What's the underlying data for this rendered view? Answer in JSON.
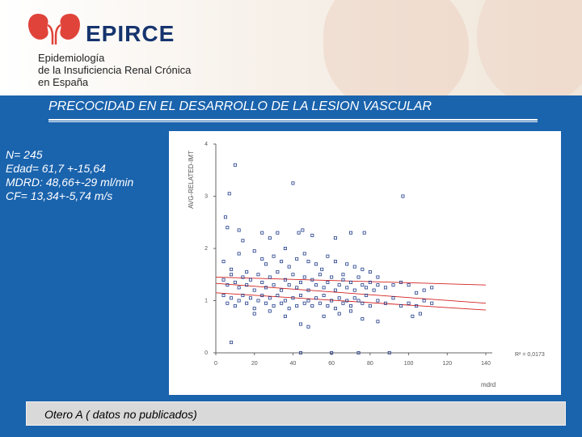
{
  "header": {
    "brand": "EPIRCE",
    "org_lines": [
      "Epidemiología",
      "de la Insuficiencia Renal Crónica",
      "en España"
    ]
  },
  "title": "PRECOCIDAD EN EL DESARROLLO DE LA LESION VASCULAR",
  "stats": [
    "N= 245",
    "Edad= 61,7 +-15,64",
    "MDRD: 48,66+-29 ml/min",
    "CF= 13,34+-5,74 m/s"
  ],
  "footer": {
    "source": "Otero A ( datos no publicados)"
  },
  "colors": {
    "background": "#1a63ad",
    "logo_red": "#e0433a",
    "brand_navy": "#16346e",
    "point_blue": "#1f3b8a",
    "fit_red": "#d42020"
  },
  "chart_data": {
    "type": "scatter",
    "xlabel": "mdrd",
    "ylabel": "AVG-RELATED-IMT",
    "xlim": [
      0,
      140
    ],
    "ylim": [
      0,
      4
    ],
    "xticks": [
      "0",
      "20",
      "40",
      "60",
      "80",
      "100",
      "120",
      "140"
    ],
    "yticks": [
      "0",
      "1",
      "2",
      "3",
      "4"
    ],
    "r2_label": "R² = 0,0173",
    "points": [
      [
        10,
        3.6
      ],
      [
        7,
        3.05
      ],
      [
        5,
        2.6
      ],
      [
        6,
        2.4
      ],
      [
        40,
        3.25
      ],
      [
        97,
        3.0
      ],
      [
        12,
        2.35
      ],
      [
        14,
        2.15
      ],
      [
        24,
        2.3
      ],
      [
        28,
        2.2
      ],
      [
        32,
        2.3
      ],
      [
        43,
        2.3
      ],
      [
        45,
        2.35
      ],
      [
        50,
        2.25
      ],
      [
        62,
        2.2
      ],
      [
        70,
        2.3
      ],
      [
        77,
        2.3
      ],
      [
        4,
        1.75
      ],
      [
        8,
        1.6
      ],
      [
        12,
        1.9
      ],
      [
        16,
        1.55
      ],
      [
        20,
        1.95
      ],
      [
        24,
        1.8
      ],
      [
        26,
        1.7
      ],
      [
        30,
        1.85
      ],
      [
        34,
        1.75
      ],
      [
        36,
        2.0
      ],
      [
        38,
        1.65
      ],
      [
        42,
        1.8
      ],
      [
        46,
        1.9
      ],
      [
        48,
        1.75
      ],
      [
        52,
        1.7
      ],
      [
        55,
        1.6
      ],
      [
        58,
        1.85
      ],
      [
        62,
        1.75
      ],
      [
        66,
        1.5
      ],
      [
        68,
        1.7
      ],
      [
        72,
        1.65
      ],
      [
        76,
        1.6
      ],
      [
        80,
        1.55
      ],
      [
        84,
        1.45
      ],
      [
        4,
        1.4
      ],
      [
        6,
        1.3
      ],
      [
        8,
        1.5
      ],
      [
        10,
        1.35
      ],
      [
        12,
        1.25
      ],
      [
        14,
        1.45
      ],
      [
        16,
        1.3
      ],
      [
        18,
        1.4
      ],
      [
        20,
        1.2
      ],
      [
        22,
        1.5
      ],
      [
        24,
        1.35
      ],
      [
        26,
        1.25
      ],
      [
        28,
        1.45
      ],
      [
        30,
        1.3
      ],
      [
        32,
        1.55
      ],
      [
        34,
        1.2
      ],
      [
        36,
        1.4
      ],
      [
        38,
        1.3
      ],
      [
        40,
        1.5
      ],
      [
        42,
        1.25
      ],
      [
        44,
        1.35
      ],
      [
        46,
        1.45
      ],
      [
        48,
        1.2
      ],
      [
        50,
        1.4
      ],
      [
        52,
        1.3
      ],
      [
        54,
        1.5
      ],
      [
        56,
        1.25
      ],
      [
        58,
        1.35
      ],
      [
        60,
        1.45
      ],
      [
        62,
        1.2
      ],
      [
        64,
        1.3
      ],
      [
        66,
        1.4
      ],
      [
        68,
        1.25
      ],
      [
        70,
        1.35
      ],
      [
        72,
        1.2
      ],
      [
        74,
        1.45
      ],
      [
        76,
        1.3
      ],
      [
        78,
        1.25
      ],
      [
        80,
        1.35
      ],
      [
        82,
        1.2
      ],
      [
        84,
        1.3
      ],
      [
        88,
        1.25
      ],
      [
        92,
        1.3
      ],
      [
        96,
        1.35
      ],
      [
        100,
        1.3
      ],
      [
        104,
        1.15
      ],
      [
        108,
        1.2
      ],
      [
        112,
        1.25
      ],
      [
        4,
        1.1
      ],
      [
        6,
        0.95
      ],
      [
        8,
        1.05
      ],
      [
        10,
        0.9
      ],
      [
        12,
        1.0
      ],
      [
        14,
        1.1
      ],
      [
        16,
        0.95
      ],
      [
        18,
        1.05
      ],
      [
        20,
        0.85
      ],
      [
        22,
        1.0
      ],
      [
        24,
        1.1
      ],
      [
        26,
        0.95
      ],
      [
        28,
        1.05
      ],
      [
        30,
        0.9
      ],
      [
        32,
        1.1
      ],
      [
        34,
        0.95
      ],
      [
        36,
        1.0
      ],
      [
        38,
        0.85
      ],
      [
        40,
        1.05
      ],
      [
        42,
        0.9
      ],
      [
        44,
        1.1
      ],
      [
        46,
        0.95
      ],
      [
        48,
        1.0
      ],
      [
        50,
        0.9
      ],
      [
        52,
        1.05
      ],
      [
        54,
        0.95
      ],
      [
        56,
        1.1
      ],
      [
        58,
        0.9
      ],
      [
        60,
        1.0
      ],
      [
        62,
        0.85
      ],
      [
        64,
        1.05
      ],
      [
        66,
        0.95
      ],
      [
        68,
        1.0
      ],
      [
        70,
        0.9
      ],
      [
        72,
        1.05
      ],
      [
        74,
        1.0
      ],
      [
        76,
        0.95
      ],
      [
        78,
        1.1
      ],
      [
        80,
        0.9
      ],
      [
        84,
        1.0
      ],
      [
        88,
        0.95
      ],
      [
        92,
        1.05
      ],
      [
        96,
        0.9
      ],
      [
        100,
        0.95
      ],
      [
        104,
        0.9
      ],
      [
        108,
        1.0
      ],
      [
        112,
        0.95
      ],
      [
        20,
        0.75
      ],
      [
        28,
        0.8
      ],
      [
        36,
        0.7
      ],
      [
        44,
        0.55
      ],
      [
        48,
        0.5
      ],
      [
        56,
        0.7
      ],
      [
        64,
        0.75
      ],
      [
        70,
        0.8
      ],
      [
        76,
        0.65
      ],
      [
        84,
        0.6
      ],
      [
        102,
        0.7
      ],
      [
        106,
        0.75
      ],
      [
        8,
        0.2
      ],
      [
        44,
        0.0
      ],
      [
        60,
        0.0
      ],
      [
        74,
        0.0
      ],
      [
        90,
        0.0
      ]
    ],
    "fit_lines": [
      {
        "name": "upper-band",
        "x": [
          0,
          140
        ],
        "y": [
          1.45,
          1.3
        ]
      },
      {
        "name": "regression",
        "x": [
          0,
          140
        ],
        "y": [
          1.33,
          0.95
        ]
      },
      {
        "name": "lower-band",
        "x": [
          0,
          140
        ],
        "y": [
          1.15,
          0.82
        ]
      }
    ]
  }
}
